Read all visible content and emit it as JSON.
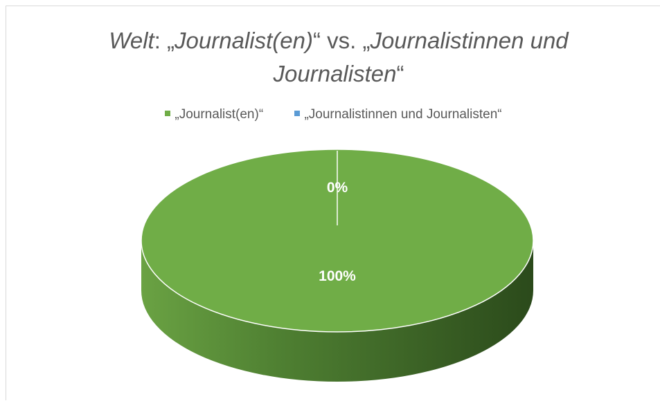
{
  "chart_data": {
    "type": "pie",
    "title": {
      "part1_italic": "Welt",
      "part2": ": „",
      "part3_italic": "Journalist(en)",
      "part4": "“ vs. „",
      "part5_italic": "Journalistinnen und Journalisten",
      "part6": "“"
    },
    "categories": [
      "„Journalist(en)“",
      "„Journalistinnen und Journalisten“"
    ],
    "values": [
      100,
      0
    ],
    "data_labels": [
      "100%",
      "0%"
    ],
    "colors": [
      "#70ad47",
      "#5b9bd5"
    ],
    "legend_position": "top",
    "three_d": true
  }
}
